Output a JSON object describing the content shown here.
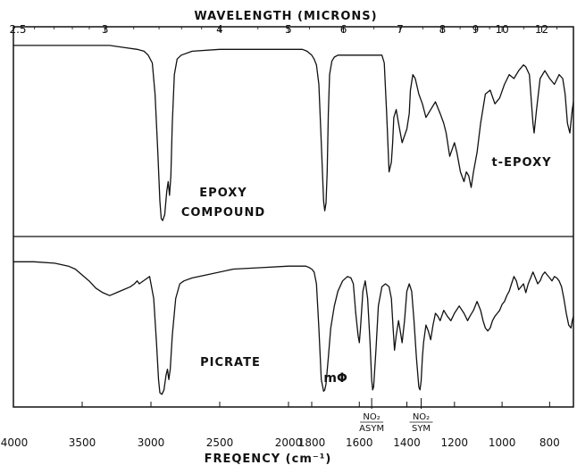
{
  "colors": {
    "ink": "#111111",
    "background": "#ffffff"
  },
  "chart_data": [
    {
      "type": "line",
      "title": "",
      "top_axis": {
        "label": "WAVELENGTH (MICRONS)",
        "ticks": [
          {
            "value": 2.5,
            "text": "2.5"
          },
          {
            "value": 3,
            "text": "3"
          },
          {
            "value": 4,
            "text": "4"
          },
          {
            "value": 5,
            "text": "5"
          },
          {
            "value": 6,
            "text": "6"
          },
          {
            "value": 7,
            "text": "7"
          },
          {
            "value": 8,
            "text": "8"
          },
          {
            "value": 9,
            "text": "9"
          },
          {
            "value": 10,
            "text": "10"
          },
          {
            "value": 12,
            "text": "12"
          }
        ]
      },
      "xlabel": "FREQENCY (cm⁻¹)",
      "x_ticks": [
        {
          "value": 4000,
          "text": "4000"
        },
        {
          "value": 3500,
          "text": "3500"
        },
        {
          "value": 3000,
          "text": "3000"
        },
        {
          "value": 2500,
          "text": "2500"
        },
        {
          "value": 2000,
          "text": "2000"
        },
        {
          "value": 1800,
          "text": "1800"
        },
        {
          "value": 1600,
          "text": "1600"
        },
        {
          "value": 1400,
          "text": "1400"
        },
        {
          "value": 1200,
          "text": "1200"
        },
        {
          "value": 1000,
          "text": "1000"
        },
        {
          "value": 800,
          "text": "800"
        }
      ],
      "xlim": [
        4000,
        700
      ],
      "ylim": [
        0,
        1
      ],
      "grid": false,
      "panels": [
        {
          "label_lines": [
            "EPOXY",
            "COMPOUND"
          ],
          "side_label": "t-EPOXY",
          "series": [
            {
              "x": [
                4000,
                3700,
                3500,
                3300,
                3200,
                3100,
                3050,
                3020,
                2990,
                2970,
                2950,
                2935,
                2925,
                2915,
                2900,
                2885,
                2875,
                2865,
                2855,
                2845,
                2830,
                2810,
                2780,
                2700,
                2500,
                2300,
                2100,
                1950,
                1880,
                1840,
                1800,
                1790,
                1780,
                1770,
                1760,
                1750,
                1745,
                1740,
                1735,
                1730,
                1725,
                1715,
                1705,
                1690,
                1660,
                1620,
                1580,
                1550,
                1520,
                1505,
                1495,
                1485,
                1475,
                1465,
                1460,
                1455,
                1445,
                1435,
                1420,
                1400,
                1390,
                1385,
                1375,
                1365,
                1350,
                1335,
                1320,
                1300,
                1280,
                1260,
                1245,
                1235,
                1220,
                1200,
                1190,
                1175,
                1160,
                1150,
                1140,
                1130,
                1120,
                1105,
                1090,
                1070,
                1050,
                1030,
                1010,
                990,
                970,
                950,
                930,
                910,
                900,
                885,
                870,
                865,
                855,
                840,
                820,
                800,
                780,
                760,
                745,
                735,
                725,
                715,
                705,
                700
              ],
              "y": [
                0.95,
                0.95,
                0.95,
                0.95,
                0.94,
                0.93,
                0.92,
                0.9,
                0.86,
                0.7,
                0.4,
                0.15,
                0.06,
                0.05,
                0.08,
                0.2,
                0.25,
                0.18,
                0.28,
                0.55,
                0.8,
                0.88,
                0.9,
                0.92,
                0.93,
                0.93,
                0.93,
                0.93,
                0.93,
                0.92,
                0.9,
                0.88,
                0.85,
                0.75,
                0.45,
                0.15,
                0.1,
                0.14,
                0.3,
                0.6,
                0.8,
                0.87,
                0.89,
                0.9,
                0.9,
                0.9,
                0.9,
                0.9,
                0.9,
                0.9,
                0.86,
                0.6,
                0.3,
                0.35,
                0.45,
                0.58,
                0.62,
                0.55,
                0.45,
                0.52,
                0.6,
                0.72,
                0.8,
                0.78,
                0.7,
                0.65,
                0.58,
                0.62,
                0.66,
                0.6,
                0.55,
                0.5,
                0.38,
                0.45,
                0.4,
                0.3,
                0.25,
                0.3,
                0.28,
                0.22,
                0.3,
                0.4,
                0.55,
                0.7,
                0.72,
                0.65,
                0.68,
                0.75,
                0.8,
                0.78,
                0.82,
                0.85,
                0.84,
                0.8,
                0.55,
                0.5,
                0.62,
                0.78,
                0.82,
                0.78,
                0.75,
                0.8,
                0.78,
                0.7,
                0.55,
                0.5,
                0.62,
                0.66
              ]
            }
          ]
        },
        {
          "label_lines": [
            "PICRATE"
          ],
          "series": [
            {
              "x": [
                4000,
                3850,
                3700,
                3600,
                3550,
                3500,
                3450,
                3400,
                3350,
                3300,
                3250,
                3200,
                3150,
                3120,
                3100,
                3085,
                3070,
                3040,
                3010,
                2980,
                2960,
                2945,
                2935,
                2920,
                2905,
                2890,
                2880,
                2870,
                2860,
                2845,
                2820,
                2790,
                2760,
                2700,
                2600,
                2400,
                2200,
                2000,
                1880,
                1850,
                1820,
                1800,
                1790,
                1780,
                1770,
                1760,
                1750,
                1745,
                1740,
                1730,
                1720,
                1705,
                1690,
                1670,
                1650,
                1635,
                1625,
                1615,
                1605,
                1600,
                1595,
                1585,
                1575,
                1565,
                1555,
                1548,
                1544,
                1540,
                1530,
                1520,
                1505,
                1490,
                1475,
                1465,
                1458,
                1452,
                1445,
                1435,
                1430,
                1420,
                1410,
                1400,
                1390,
                1380,
                1370,
                1360,
                1350,
                1345,
                1340,
                1335,
                1330,
                1320,
                1310,
                1300,
                1290,
                1280,
                1270,
                1260,
                1245,
                1230,
                1215,
                1200,
                1180,
                1160,
                1145,
                1135,
                1120,
                1105,
                1090,
                1080,
                1070,
                1060,
                1050,
                1040,
                1030,
                1020,
                1010,
                1000,
                990,
                980,
                970,
                960,
                950,
                940,
                930,
                920,
                910,
                900,
                890,
                880,
                870,
                860,
                850,
                840,
                830,
                820,
                810,
                800,
                790,
                780,
                770,
                760,
                750,
                740,
                730,
                720,
                710,
                705,
                700
              ],
              "y": [
                0.95,
                0.95,
                0.94,
                0.92,
                0.9,
                0.86,
                0.82,
                0.77,
                0.74,
                0.72,
                0.74,
                0.76,
                0.78,
                0.8,
                0.82,
                0.8,
                0.81,
                0.83,
                0.85,
                0.7,
                0.4,
                0.15,
                0.06,
                0.05,
                0.08,
                0.18,
                0.22,
                0.15,
                0.22,
                0.45,
                0.7,
                0.8,
                0.82,
                0.84,
                0.86,
                0.9,
                0.91,
                0.92,
                0.92,
                0.92,
                0.91,
                0.9,
                0.88,
                0.8,
                0.5,
                0.15,
                0.07,
                0.08,
                0.12,
                0.3,
                0.5,
                0.65,
                0.75,
                0.82,
                0.85,
                0.84,
                0.8,
                0.6,
                0.45,
                0.4,
                0.5,
                0.75,
                0.82,
                0.7,
                0.4,
                0.15,
                0.08,
                0.1,
                0.35,
                0.65,
                0.78,
                0.8,
                0.78,
                0.7,
                0.5,
                0.35,
                0.45,
                0.55,
                0.5,
                0.4,
                0.55,
                0.75,
                0.8,
                0.75,
                0.55,
                0.3,
                0.1,
                0.08,
                0.14,
                0.3,
                0.4,
                0.52,
                0.48,
                0.42,
                0.52,
                0.6,
                0.58,
                0.55,
                0.62,
                0.58,
                0.55,
                0.6,
                0.65,
                0.6,
                0.55,
                0.58,
                0.62,
                0.68,
                0.62,
                0.55,
                0.5,
                0.48,
                0.5,
                0.55,
                0.58,
                0.6,
                0.62,
                0.66,
                0.68,
                0.72,
                0.75,
                0.8,
                0.85,
                0.82,
                0.76,
                0.78,
                0.8,
                0.74,
                0.8,
                0.84,
                0.88,
                0.84,
                0.8,
                0.82,
                0.86,
                0.88,
                0.86,
                0.84,
                0.82,
                0.85,
                0.84,
                0.82,
                0.78,
                0.7,
                0.6,
                0.52,
                0.5,
                0.55,
                0.58
              ]
            }
          ]
        }
      ],
      "annotations": [
        {
          "text": "mΦ",
          "x": 1625
        },
        {
          "text": "NO₂",
          "text2": "ASYM",
          "x": 1548
        },
        {
          "text": "NO₂",
          "text2": "SYM",
          "x": 1340
        }
      ]
    }
  ]
}
